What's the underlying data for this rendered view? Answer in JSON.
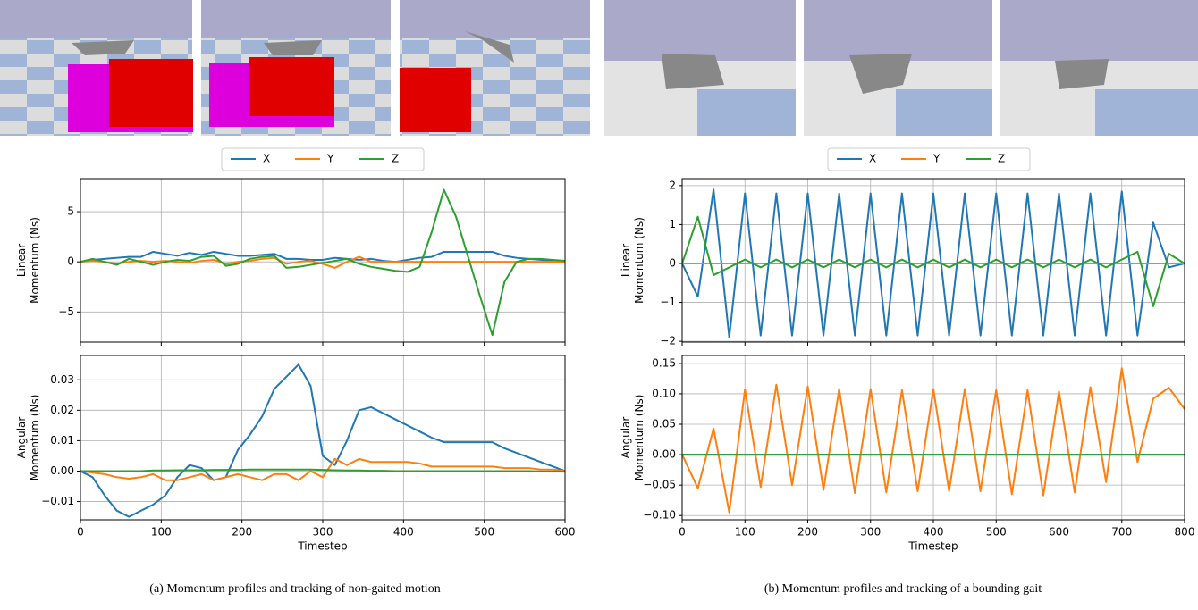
{
  "captions": [
    "(a) Momentum profiles and tracking of non-gaited motion",
    "(b) Momentum profiles and tracking of a bounding gait"
  ],
  "chart_data": [
    {
      "type": "line",
      "ylabel": [
        "Linear",
        "Momentum (Ns)"
      ],
      "legend": "top",
      "grid": true,
      "x": [
        0,
        15,
        30,
        45,
        60,
        75,
        90,
        105,
        120,
        135,
        150,
        165,
        180,
        195,
        210,
        225,
        240,
        255,
        270,
        285,
        300,
        315,
        330,
        345,
        360,
        375,
        390,
        405,
        420,
        435,
        450,
        465,
        480,
        495,
        510,
        525,
        540,
        555,
        570,
        585,
        600
      ],
      "xlim": [
        0,
        600
      ],
      "xticks": [
        0,
        100,
        200,
        300,
        400,
        500,
        600
      ],
      "ylim": [
        -8,
        8.3
      ],
      "yticks": [
        {
          "value": -5,
          "label": "−5"
        },
        0,
        5
      ],
      "series": [
        {
          "name": "X",
          "color": "#1f77b4",
          "values": [
            0,
            0.2,
            0.3,
            0.4,
            0.5,
            0.5,
            1.0,
            0.8,
            0.6,
            0.9,
            0.7,
            1.0,
            0.8,
            0.6,
            0.6,
            0.7,
            0.8,
            0.3,
            0.3,
            0.2,
            0.2,
            0.4,
            0.3,
            0.2,
            0.3,
            0.1,
            0,
            0.2,
            0.4,
            0.5,
            1.0,
            1.0,
            1.0,
            1.0,
            1.0,
            0.6,
            0.4,
            0.3,
            0.2,
            0.1,
            0
          ]
        },
        {
          "name": "Y",
          "color": "#ff7f0e",
          "values": [
            0,
            0.1,
            0,
            -0.2,
            0,
            0.1,
            0,
            0.1,
            0,
            -0.1,
            0.1,
            0.2,
            -0.2,
            0,
            0.1,
            0.3,
            0.4,
            -0.2,
            0,
            0.1,
            -0.2,
            -0.6,
            0,
            0.5,
            0,
            0,
            0,
            0,
            0,
            0,
            0,
            0,
            0,
            0,
            0,
            0,
            0,
            0,
            0,
            0,
            0
          ]
        },
        {
          "name": "Z",
          "color": "#2ca02c",
          "values": [
            0,
            0.3,
            0,
            -0.3,
            0.3,
            0,
            -0.3,
            0,
            0.2,
            0.1,
            0.5,
            0.6,
            -0.4,
            -0.2,
            0.3,
            0.5,
            0.6,
            -0.6,
            -0.5,
            -0.3,
            -0.1,
            0.1,
            0.3,
            -0.2,
            -0.5,
            -0.7,
            -0.9,
            -1.0,
            -0.5,
            3.0,
            7.2,
            4.5,
            0.5,
            -3.5,
            -7.3,
            -2.0,
            0.0,
            0.3,
            0.3,
            0.2,
            0.1
          ]
        }
      ]
    },
    {
      "type": "line",
      "ylabel": [
        "Angular",
        "Momentum (Ns)"
      ],
      "xlabel": "Timestep",
      "grid": true,
      "x": [
        0,
        15,
        30,
        45,
        60,
        75,
        90,
        105,
        120,
        135,
        150,
        165,
        180,
        195,
        210,
        225,
        240,
        255,
        270,
        285,
        300,
        315,
        330,
        345,
        360,
        375,
        390,
        405,
        420,
        435,
        450,
        465,
        480,
        495,
        510,
        525,
        540,
        555,
        570,
        585,
        600
      ],
      "xlim": [
        0,
        600
      ],
      "xticks": [
        0,
        100,
        200,
        300,
        400,
        500,
        600
      ],
      "ylim": [
        -0.016,
        0.038
      ],
      "yticks": [
        {
          "value": -0.01,
          "label": "−0.01"
        },
        {
          "value": 0,
          "label": "0.00"
        },
        0.01,
        0.02,
        0.03
      ],
      "series": [
        {
          "name": "X",
          "color": "#1f77b4",
          "values": [
            0,
            -0.002,
            -0.008,
            -0.013,
            -0.015,
            -0.013,
            -0.011,
            -0.008,
            -0.002,
            0.002,
            0.001,
            -0.003,
            -0.002,
            0.007,
            0.012,
            0.018,
            0.027,
            0.031,
            0.035,
            0.028,
            0.005,
            0.002,
            0.01,
            0.02,
            0.021,
            0.019,
            0.017,
            0.015,
            0.013,
            0.011,
            0.0095,
            0.0095,
            0.0095,
            0.0095,
            0.0095,
            0.0075,
            0.006,
            0.0045,
            0.003,
            0.0015,
            0
          ]
        },
        {
          "name": "Y",
          "color": "#ff7f0e",
          "values": [
            0,
            -0.0005,
            -0.001,
            -0.002,
            -0.0025,
            -0.002,
            -0.001,
            -0.003,
            -0.003,
            -0.002,
            -0.001,
            -0.003,
            -0.002,
            -0.001,
            -0.002,
            -0.003,
            -0.001,
            -0.001,
            -0.003,
            0,
            -0.002,
            0.004,
            0.002,
            0.004,
            0.003,
            0.003,
            0.003,
            0.003,
            0.0025,
            0.0015,
            0.0015,
            0.0015,
            0.0015,
            0.0015,
            0.0015,
            0.001,
            0.001,
            0.001,
            0.0005,
            0.0005,
            0
          ]
        },
        {
          "name": "Z",
          "color": "#2ca02c",
          "values": [
            0,
            0,
            0,
            0,
            0,
            0,
            0.0002,
            0.0002,
            0.0003,
            0.0003,
            0.0003,
            0.0004,
            0.0004,
            0.0004,
            0.0005,
            0.0005,
            0.0005,
            0.0005,
            0.0005,
            0.0005,
            0.0004,
            0.0003,
            0.0002,
            0.0002,
            0.0001,
            0.0001,
            0,
            0,
            0,
            0,
            0,
            0,
            0,
            0,
            0,
            0,
            0,
            0,
            -0.0001,
            -0.0001,
            -0.0002
          ]
        }
      ]
    },
    {
      "type": "line",
      "ylabel": [
        "Linear",
        "Momentum (Ns)"
      ],
      "legend": "top",
      "grid": true,
      "x": [
        0,
        25,
        50,
        75,
        100,
        125,
        150,
        175,
        200,
        225,
        250,
        275,
        300,
        325,
        350,
        375,
        400,
        425,
        450,
        475,
        500,
        525,
        550,
        575,
        600,
        625,
        650,
        675,
        700,
        725,
        750,
        775,
        800
      ],
      "xlim": [
        0,
        800
      ],
      "xticks": [
        0,
        100,
        200,
        300,
        400,
        500,
        600,
        700,
        800
      ],
      "ylim": [
        -2.02,
        2.18
      ],
      "yticks": [
        {
          "value": -2,
          "label": "−2"
        },
        {
          "value": -1,
          "label": "−1"
        },
        0,
        1,
        2
      ],
      "series": [
        {
          "name": "X",
          "color": "#1f77b4",
          "values": [
            0,
            -0.85,
            1.9,
            -1.9,
            1.8,
            -1.85,
            1.8,
            -1.85,
            1.8,
            -1.85,
            1.8,
            -1.85,
            1.8,
            -1.85,
            1.8,
            -1.85,
            1.8,
            -1.85,
            1.8,
            -1.85,
            1.8,
            -1.85,
            1.8,
            -1.85,
            1.8,
            -1.85,
            1.8,
            -1.85,
            1.85,
            -1.85,
            1.05,
            -0.1,
            0
          ]
        },
        {
          "name": "Y",
          "color": "#ff7f0e",
          "values": [
            0,
            0,
            0,
            0,
            0,
            0,
            0,
            0,
            0,
            0,
            0,
            0,
            0,
            0,
            0,
            0,
            0,
            0,
            0,
            0,
            0,
            0,
            0,
            0,
            0,
            0,
            0,
            0,
            0,
            0,
            0,
            0,
            0
          ]
        },
        {
          "name": "Z",
          "color": "#2ca02c",
          "values": [
            0,
            1.2,
            -0.3,
            -0.1,
            0.1,
            -0.1,
            0.1,
            -0.1,
            0.1,
            -0.1,
            0.1,
            -0.1,
            0.1,
            -0.1,
            0.1,
            -0.1,
            0.1,
            -0.1,
            0.1,
            -0.1,
            0.1,
            -0.1,
            0.1,
            -0.1,
            0.1,
            -0.1,
            0.1,
            -0.1,
            0.1,
            0.3,
            -1.1,
            0.25,
            0
          ]
        }
      ]
    },
    {
      "type": "line",
      "ylabel": [
        "Angular",
        "Momentum (Ns)"
      ],
      "xlabel": "Timestep",
      "grid": true,
      "x": [
        0,
        25,
        50,
        75,
        100,
        125,
        150,
        175,
        200,
        225,
        250,
        275,
        300,
        325,
        350,
        375,
        400,
        425,
        450,
        475,
        500,
        525,
        550,
        575,
        600,
        625,
        650,
        675,
        700,
        725,
        750,
        775,
        800
      ],
      "xlim": [
        0,
        800
      ],
      "xticks": [
        0,
        100,
        200,
        300,
        400,
        500,
        600,
        700,
        800
      ],
      "ylim": [
        -0.107,
        0.163
      ],
      "yticks": [
        {
          "value": -0.1,
          "label": "−0.10"
        },
        {
          "value": -0.05,
          "label": "−0.05"
        },
        {
          "value": 0,
          "label": "0.00"
        },
        0.05,
        {
          "value": 0.1,
          "label": "0.10"
        },
        0.15
      ],
      "series": [
        {
          "name": "X",
          "color": "#1f77b4",
          "values": [
            0,
            0,
            0,
            0,
            0,
            0,
            0,
            0,
            0,
            0,
            0,
            0,
            0,
            0,
            0,
            0,
            0,
            0,
            0,
            0,
            0,
            0,
            0,
            0,
            0,
            0,
            0,
            0,
            0,
            0,
            0,
            0,
            0
          ]
        },
        {
          "name": "Y",
          "color": "#ff7f0e",
          "values": [
            0,
            -0.055,
            0.043,
            -0.095,
            0.107,
            -0.053,
            0.115,
            -0.05,
            0.112,
            -0.058,
            0.108,
            -0.063,
            0.108,
            -0.062,
            0.106,
            -0.06,
            0.108,
            -0.06,
            0.108,
            -0.06,
            0.106,
            -0.065,
            0.106,
            -0.067,
            0.104,
            -0.062,
            0.111,
            -0.045,
            0.142,
            -0.012,
            0.092,
            0.11,
            0.075
          ]
        },
        {
          "name": "Z",
          "color": "#2ca02c",
          "values": [
            0,
            0,
            0,
            0,
            0,
            0,
            0,
            0,
            0,
            0,
            0,
            0,
            0,
            0,
            0,
            0,
            0,
            0,
            0,
            0,
            0,
            0,
            0,
            0,
            0,
            0,
            0,
            0,
            0,
            0,
            0,
            0,
            0
          ]
        }
      ]
    }
  ]
}
